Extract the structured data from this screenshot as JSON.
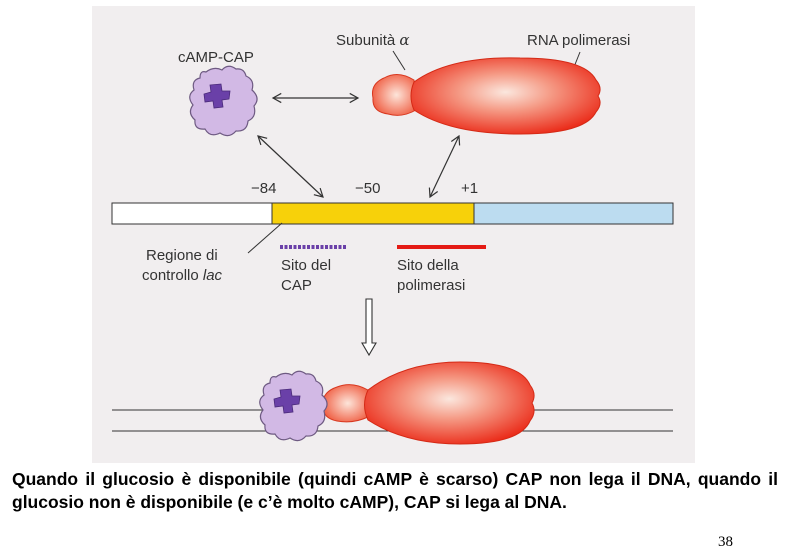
{
  "figure": {
    "labels": {
      "camp_cap": "cAMP-CAP",
      "subunit_alpha_text": "Subunità ",
      "subunit_alpha_symbol": "α",
      "rna_polymerase": "RNA polimerasi",
      "pos_minus84": "−84",
      "pos_minus50": "−50",
      "pos_plus1": "+1",
      "lac_region_line1": "Regione di",
      "lac_region_line2_text": "controllo ",
      "lac_region_line2_italic": "lac",
      "cap_site_line1": "Sito del",
      "cap_site_line2": "CAP",
      "pol_site_line1": "Sito della",
      "pol_site_line2": "polimerasi"
    },
    "colors": {
      "panel_background": "#f1eeef",
      "control_region": "#f7d10a",
      "downstream_dna": "#bcdcf0",
      "cap_protein": "#d2b9e5",
      "camp_core": "#6a40a8",
      "polymerase": "#ec2b17",
      "cap_site_mark": "#6a40a8",
      "pol_site_mark": "#e41a14"
    }
  },
  "caption": "Quando il glucosio è disponibile (quindi cAMP è scarso) CAP non lega il DNA, quando il glucosio non è disponibile (e c’è molto cAMP), CAP si lega al DNA.",
  "page_number": "38"
}
